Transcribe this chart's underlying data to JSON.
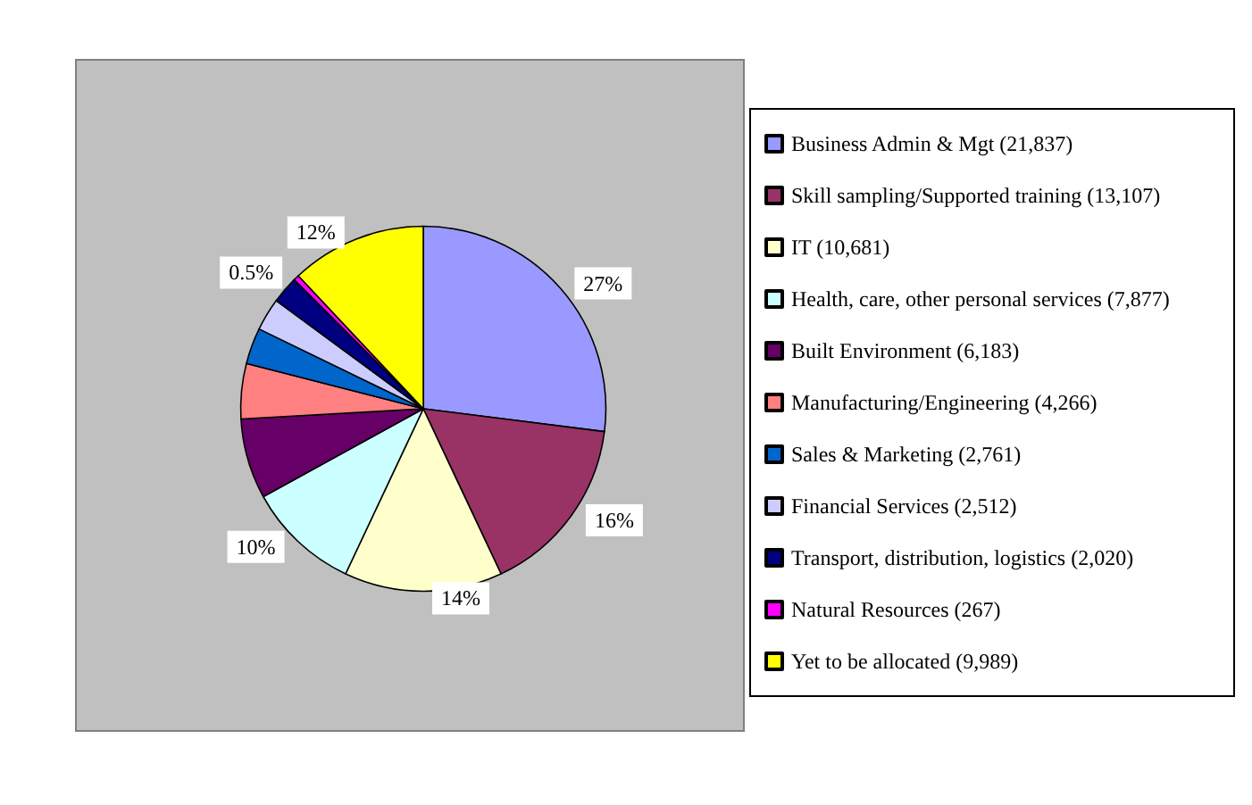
{
  "chart_data": {
    "type": "pie",
    "categories": [
      "Business Admin & Mgt (21,837)",
      "Skill sampling/Supported training (13,107)",
      "IT (10,681)",
      "Health, care, other personal services (7,877)",
      "Built Environment (6,183)",
      "Manufacturing/Engineering (4,266)",
      "Sales & Marketing (2,761)",
      "Financial Services (2,512)",
      "Transport, distribution, logistics (2,020)",
      "Natural Resources (267)",
      "Yet to be allocated (9,989)"
    ],
    "values": [
      27,
      16,
      14,
      10,
      7.1,
      4.9,
      3.2,
      2.9,
      2.4,
      0.5,
      12
    ],
    "colors": [
      "#9999ff",
      "#993366",
      "#ffffcc",
      "#ccffff",
      "#660066",
      "#ff8080",
      "#0066cc",
      "#ccccff",
      "#000080",
      "#ff00ff",
      "#ffff00"
    ],
    "value_labels": [
      "27%",
      "16%",
      "14%",
      "10%",
      null,
      null,
      null,
      null,
      null,
      "0.5%",
      "12%"
    ],
    "legend": "right"
  }
}
